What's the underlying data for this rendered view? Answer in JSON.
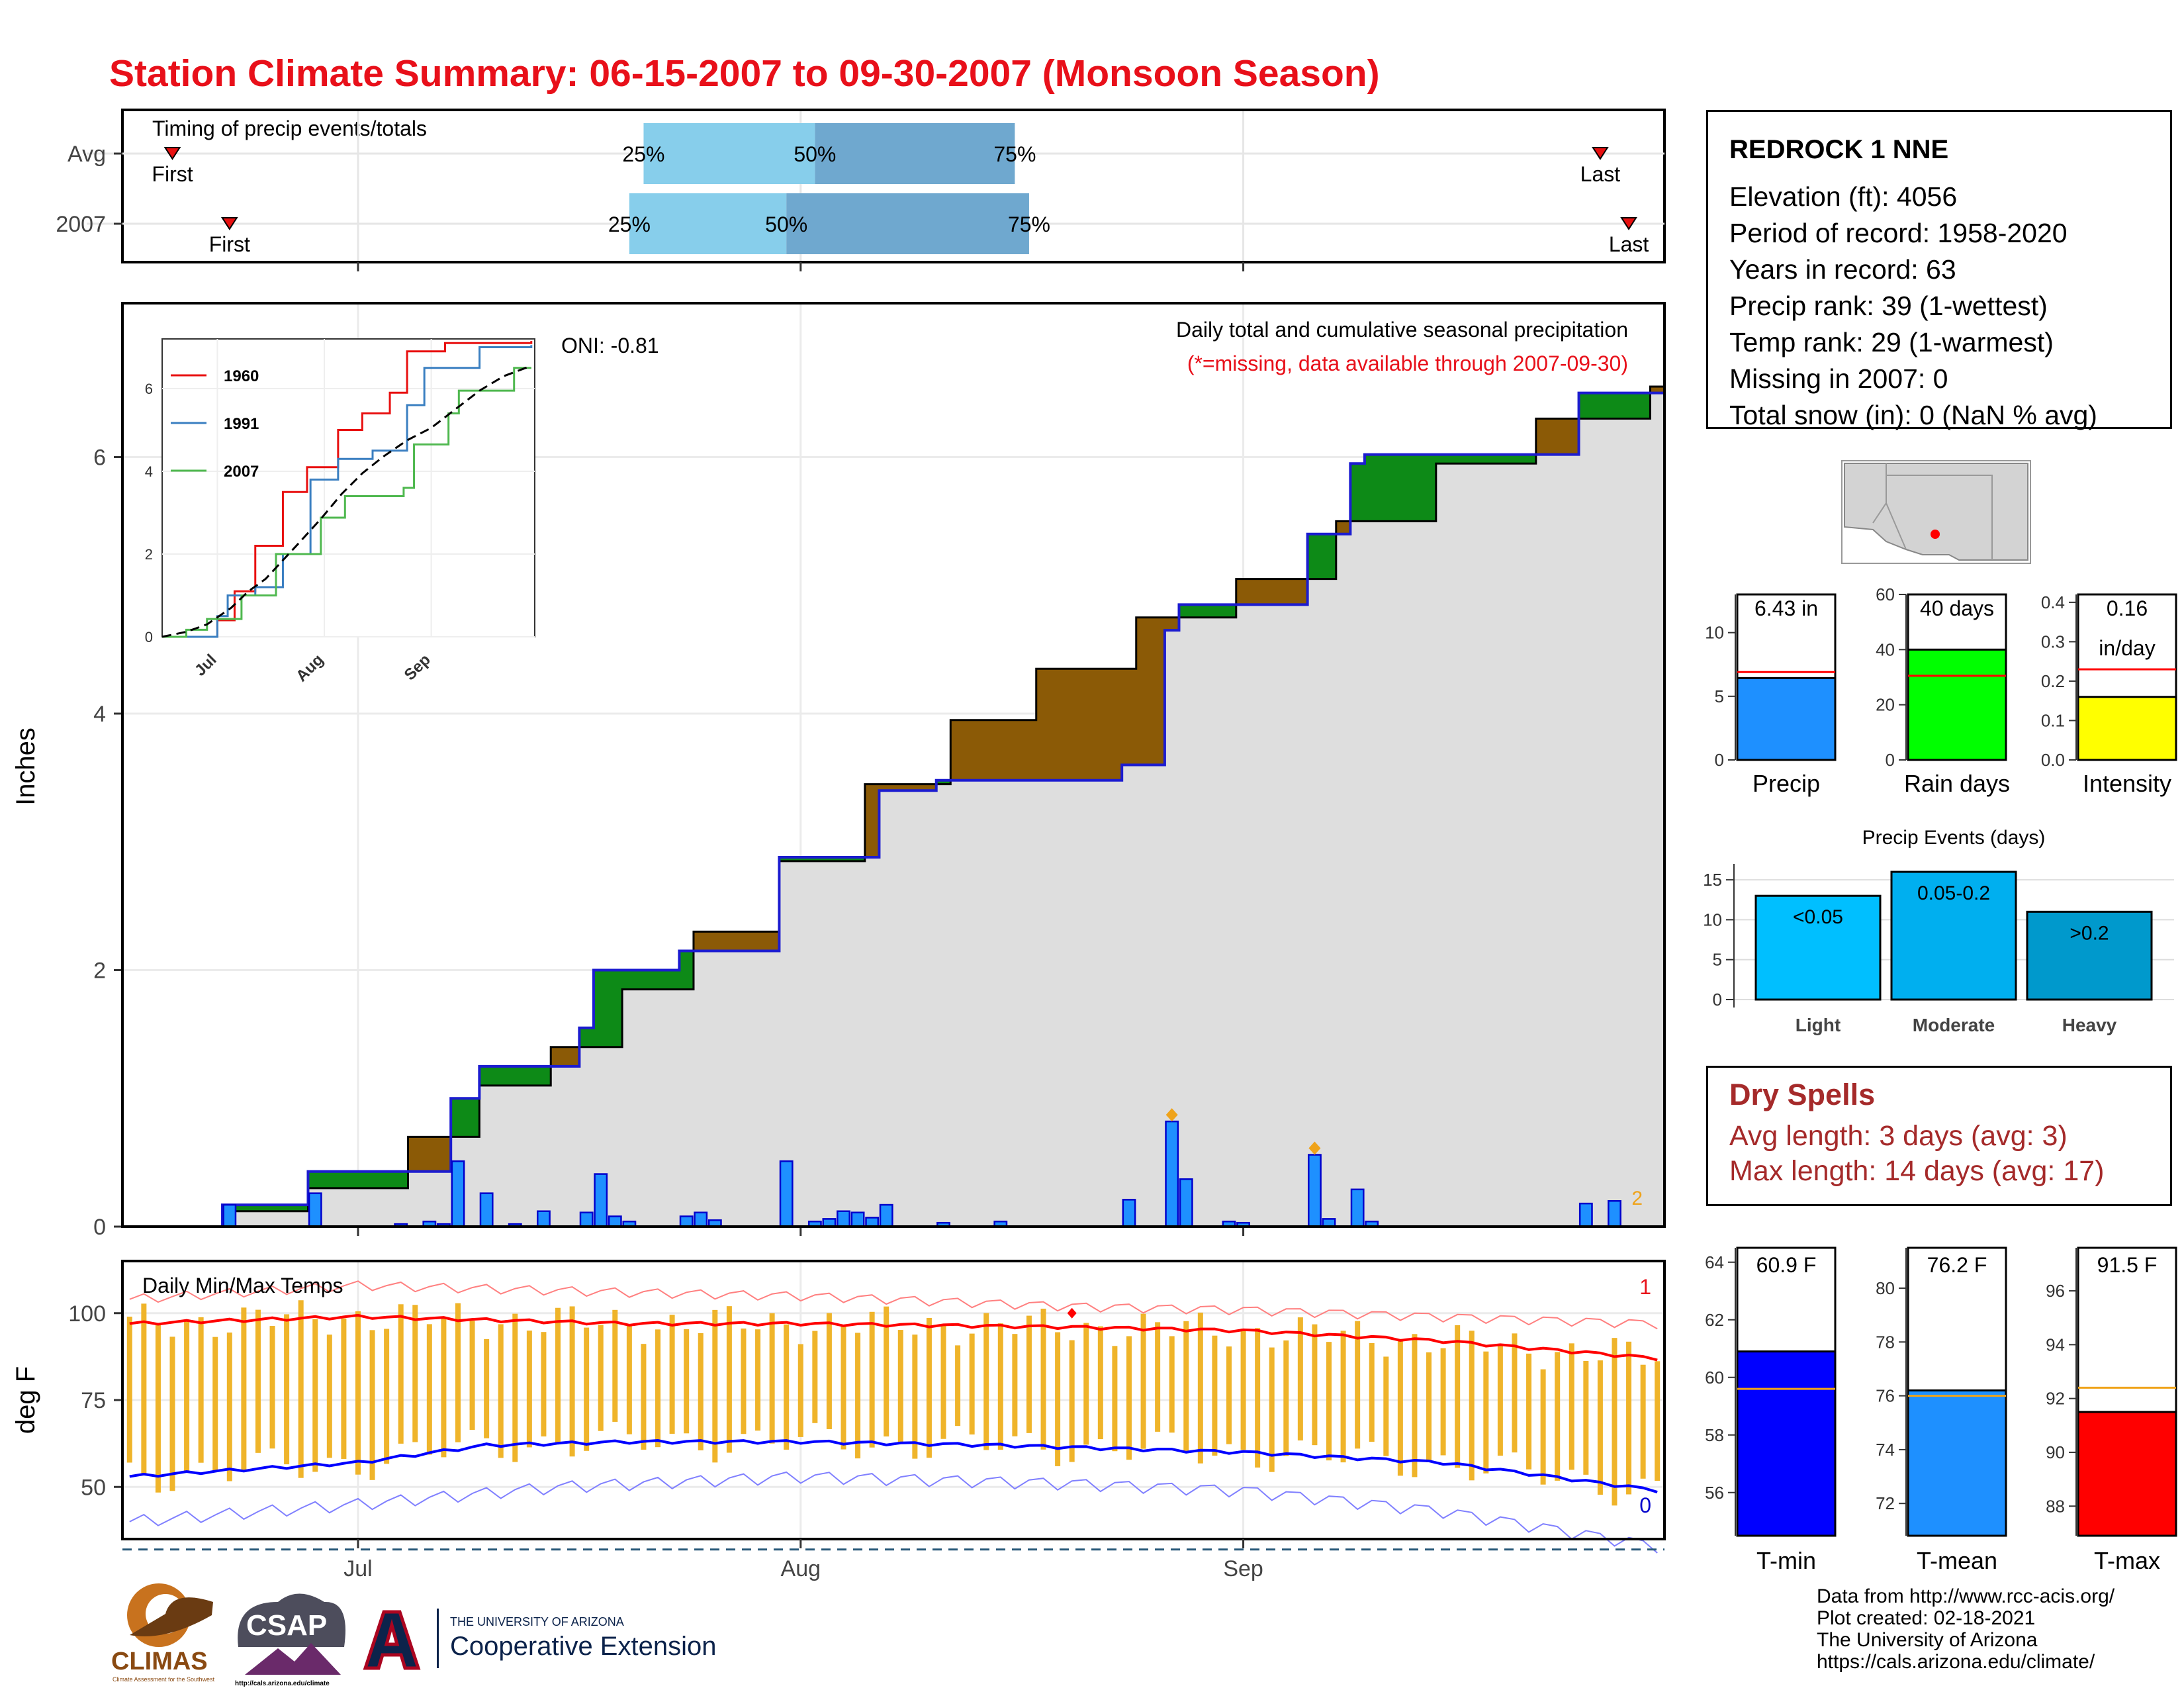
{
  "title": "Station Climate Summary: 06-15-2007 to 09-30-2007 (Monsoon Season)",
  "colors": {
    "title": "#e8101a",
    "cum_current": "#1c1cd0",
    "wet_fill": "#0d8a17",
    "dry_fill": "#8b5a06",
    "bar": "#1e90ff",
    "tmax": "#ff0000",
    "tmin": "#0000ff",
    "range": "#efb42a"
  },
  "timing": {
    "label": "Timing of precip events/totals",
    "rows": [
      {
        "label": "Avg",
        "first": "First",
        "last": "Last",
        "p25": "25%",
        "p50": "50%",
        "p75": "75%",
        "first_date": "2007-06-18",
        "last_date": "2007-09-26",
        "q25_date": "2007-07-21",
        "q50_date": "2007-08-02",
        "q75_date": "2007-08-16"
      },
      {
        "label": "2007",
        "first": "First",
        "last": "Last",
        "p25": "25%",
        "p50": "50%",
        "p75": "75%",
        "first_date": "2007-06-22",
        "last_date": "2007-09-28",
        "q25_date": "2007-07-20",
        "q50_date": "2007-07-31",
        "q75_date": "2007-08-17"
      }
    ]
  },
  "precip_panel": {
    "ylabel": "Inches",
    "subtitle": "Daily total and cumulative seasonal precipitation",
    "note": "(*=missing, data available through 2007-09-30)",
    "oni": "ONI: -0.81",
    "corner_label": "2",
    "yticks": [
      "0",
      "2",
      "4",
      "6"
    ]
  },
  "inset": {
    "series": [
      "1960",
      "1991",
      "2007"
    ],
    "xticks": [
      "Jul",
      "Aug",
      "Sep"
    ],
    "yticks": [
      "0",
      "2",
      "4",
      "6"
    ]
  },
  "temp_panel": {
    "ylabel": "deg F",
    "label": "Daily Min/Max Temps",
    "corner_top": "1",
    "corner_bottom": "0",
    "yticks": [
      "50",
      "75",
      "100"
    ],
    "xticks": [
      "Jul",
      "Aug",
      "Sep"
    ]
  },
  "station": {
    "name": "REDROCK 1 NNE",
    "lines": [
      "Elevation (ft): 4056",
      "Period of record: 1958-2020",
      "Years in record: 63",
      "Precip rank: 39 (1-wettest)",
      "Temp rank: 29 (1-warmest)",
      "Missing in 2007: 0",
      "Total snow (in): 0 (NaN % avg)"
    ]
  },
  "summary_bars": [
    {
      "label": "Precip",
      "value_text": "6.43 in",
      "value": 6.43,
      "avg": 6.9,
      "ymax": 13,
      "ticks": [
        "0",
        "5",
        "10"
      ],
      "tickvals": [
        0,
        5,
        10
      ],
      "color": "#1e90ff"
    },
    {
      "label": "Rain days",
      "value_text": "40 days",
      "value": 40,
      "avg": 30.5,
      "ymax": 60,
      "ticks": [
        "0",
        "20",
        "40",
        "60"
      ],
      "tickvals": [
        0,
        20,
        40,
        60
      ],
      "color": "#00ff00"
    },
    {
      "label": "Intensity",
      "value_text": "0.16",
      "value_text2": "in/day",
      "value": 0.16,
      "avg": 0.23,
      "ymax": 0.42,
      "ticks": [
        "0.0",
        "0.1",
        "0.2",
        "0.3",
        "0.4"
      ],
      "tickvals": [
        0,
        0.1,
        0.2,
        0.3,
        0.4
      ],
      "color": "#ffff00"
    }
  ],
  "events": {
    "title": "Precip Events (days)",
    "categories": [
      "Light",
      "Moderate",
      "Heavy"
    ],
    "bar_labels": [
      "<0.05",
      "0.05-0.2",
      ">0.2"
    ],
    "values": [
      13,
      16,
      11
    ],
    "yticks": [
      "0",
      "5",
      "10",
      "15"
    ],
    "colors": [
      "#00bfff",
      "#00afef",
      "#0099cc"
    ]
  },
  "dry_spells": {
    "title": "Dry Spells",
    "avg_length": "Avg length: 3 days (avg: 3)",
    "max_length": "Max length: 14 days (avg: 17)"
  },
  "temp_bars": [
    {
      "label": "T-min",
      "value_text": "60.9 F",
      "value": 60.9,
      "avg": 59.6,
      "ymin": 54.5,
      "ymax": 64.5,
      "ticks": [
        "56",
        "58",
        "60",
        "62",
        "64"
      ],
      "tickvals": [
        56,
        58,
        60,
        62,
        64
      ],
      "color": "#0000ff"
    },
    {
      "label": "T-mean",
      "value_text": "76.2 F",
      "value": 76.2,
      "avg": 76.0,
      "ymin": 70.8,
      "ymax": 81.5,
      "ticks": [
        "72",
        "74",
        "76",
        "78",
        "80"
      ],
      "tickvals": [
        72,
        74,
        76,
        78,
        80
      ],
      "color": "#1e90ff"
    },
    {
      "label": "T-max",
      "value_text": "91.5 F",
      "value": 91.5,
      "avg": 92.4,
      "ymin": 86.9,
      "ymax": 97.6,
      "ticks": [
        "88",
        "90",
        "92",
        "94",
        "96"
      ],
      "tickvals": [
        88,
        90,
        92,
        94,
        96
      ],
      "color": "#ff0000"
    }
  ],
  "credits": [
    "Data from http://www.rcc-acis.org/",
    "Plot created: 02-18-2021",
    "The University of Arizona",
    "https://cals.arizona.edu/climate/"
  ],
  "logos": {
    "climas": "CLIMAS",
    "climas_sub": "Climate Assessment for the Southwest",
    "csap": "CSAP",
    "csap_url": "http://cals.arizona.edu/climate",
    "ua_small": "THE UNIVERSITY OF ARIZONA",
    "ua_big": "Cooperative Extension"
  },
  "chart_data": {
    "type": "area",
    "title": "Station Climate Summary: 06-15-2007 to 09-30-2007 (Monsoon Season)",
    "ylabel": "Inches",
    "x_start": "2007-06-15",
    "x_end": "2007-09-30",
    "ylim": [
      0,
      7.2
    ],
    "daily_precip_2007": [
      {
        "date": "2007-06-22",
        "in": 0.17
      },
      {
        "date": "2007-06-28",
        "in": 0.26
      },
      {
        "date": "2007-07-04",
        "in": 0.02
      },
      {
        "date": "2007-07-06",
        "in": 0.04
      },
      {
        "date": "2007-07-07",
        "in": 0.02
      },
      {
        "date": "2007-07-08",
        "in": 0.51
      },
      {
        "date": "2007-07-10",
        "in": 0.26
      },
      {
        "date": "2007-07-12",
        "in": 0.02
      },
      {
        "date": "2007-07-14",
        "in": 0.12
      },
      {
        "date": "2007-07-17",
        "in": 0.11
      },
      {
        "date": "2007-07-18",
        "in": 0.41
      },
      {
        "date": "2007-07-19",
        "in": 0.08
      },
      {
        "date": "2007-07-20",
        "in": 0.04
      },
      {
        "date": "2007-07-24",
        "in": 0.08
      },
      {
        "date": "2007-07-25",
        "in": 0.11
      },
      {
        "date": "2007-07-26",
        "in": 0.05
      },
      {
        "date": "2007-07-31",
        "in": 0.51
      },
      {
        "date": "2007-08-02",
        "in": 0.04
      },
      {
        "date": "2007-08-03",
        "in": 0.06
      },
      {
        "date": "2007-08-04",
        "in": 0.12
      },
      {
        "date": "2007-08-05",
        "in": 0.11
      },
      {
        "date": "2007-08-06",
        "in": 0.07
      },
      {
        "date": "2007-08-07",
        "in": 0.17
      },
      {
        "date": "2007-08-11",
        "in": 0.03
      },
      {
        "date": "2007-08-15",
        "in": 0.04
      },
      {
        "date": "2007-08-24",
        "in": 0.21
      },
      {
        "date": "2007-08-27",
        "in": 0.82
      },
      {
        "date": "2007-08-28",
        "in": 0.37
      },
      {
        "date": "2007-08-31",
        "in": 0.04
      },
      {
        "date": "2007-09-01",
        "in": 0.03
      },
      {
        "date": "2007-09-06",
        "in": 0.56
      },
      {
        "date": "2007-09-07",
        "in": 0.06
      },
      {
        "date": "2007-09-09",
        "in": 0.29
      },
      {
        "date": "2007-09-10",
        "in": 0.04
      },
      {
        "date": "2007-09-25",
        "in": 0.18
      },
      {
        "date": "2007-09-27",
        "in": 0.2
      }
    ],
    "cumulative_2007_points": [
      [
        "2007-06-15",
        0
      ],
      [
        "2007-06-22",
        0.17
      ],
      [
        "2007-06-28",
        0.43
      ],
      [
        "2007-07-08",
        1.0
      ],
      [
        "2007-07-10",
        1.25
      ],
      [
        "2007-07-17",
        1.55
      ],
      [
        "2007-07-18",
        2.0
      ],
      [
        "2007-07-24",
        2.15
      ],
      [
        "2007-07-31",
        2.88
      ],
      [
        "2007-08-07",
        3.4
      ],
      [
        "2007-08-11",
        3.48
      ],
      [
        "2007-08-24",
        3.6
      ],
      [
        "2007-08-27",
        4.65
      ],
      [
        "2007-08-28",
        4.85
      ],
      [
        "2007-09-06",
        5.4
      ],
      [
        "2007-09-09",
        5.95
      ],
      [
        "2007-09-10",
        6.02
      ],
      [
        "2007-09-25",
        6.5
      ],
      [
        "2007-09-30",
        6.5
      ]
    ],
    "cumulative_avg_points": [
      [
        "2007-06-15",
        0
      ],
      [
        "2007-06-22",
        0.12
      ],
      [
        "2007-06-28",
        0.3
      ],
      [
        "2007-07-05",
        0.7
      ],
      [
        "2007-07-10",
        1.1
      ],
      [
        "2007-07-15",
        1.4
      ],
      [
        "2007-07-20",
        1.85
      ],
      [
        "2007-07-25",
        2.3
      ],
      [
        "2007-07-31",
        2.85
      ],
      [
        "2007-08-06",
        3.45
      ],
      [
        "2007-08-12",
        3.95
      ],
      [
        "2007-08-18",
        4.35
      ],
      [
        "2007-08-25",
        4.75
      ],
      [
        "2007-09-01",
        5.05
      ],
      [
        "2007-09-08",
        5.5
      ],
      [
        "2007-09-15",
        5.95
      ],
      [
        "2007-09-22",
        6.3
      ],
      [
        "2007-09-30",
        6.55
      ]
    ],
    "inset_series": [
      {
        "name": "1960",
        "points": [
          [
            "06-15",
            0
          ],
          [
            "07-01",
            0.4
          ],
          [
            "07-06",
            1.1
          ],
          [
            "07-12",
            2.2
          ],
          [
            "07-20",
            3.5
          ],
          [
            "07-27",
            4.1
          ],
          [
            "08-05",
            5.0
          ],
          [
            "08-12",
            5.4
          ],
          [
            "08-20",
            5.9
          ],
          [
            "08-25",
            6.9
          ],
          [
            "09-05",
            7.1
          ],
          [
            "09-30",
            7.15
          ]
        ]
      },
      {
        "name": "1991",
        "points": [
          [
            "06-15",
            0
          ],
          [
            "07-01",
            0.5
          ],
          [
            "07-04",
            1.0
          ],
          [
            "07-12",
            1.2
          ],
          [
            "07-20",
            2.0
          ],
          [
            "07-28",
            3.8
          ],
          [
            "08-05",
            4.3
          ],
          [
            "08-15",
            4.5
          ],
          [
            "08-25",
            5.6
          ],
          [
            "08-30",
            6.5
          ],
          [
            "09-15",
            7.0
          ],
          [
            "09-30",
            7.05
          ]
        ]
      },
      {
        "name": "2007",
        "points": [
          [
            "06-15",
            0
          ],
          [
            "06-22",
            0.17
          ],
          [
            "06-28",
            0.43
          ],
          [
            "07-08",
            1.0
          ],
          [
            "07-18",
            2.0
          ],
          [
            "07-31",
            2.88
          ],
          [
            "08-07",
            3.4
          ],
          [
            "08-24",
            3.6
          ],
          [
            "08-27",
            4.65
          ],
          [
            "09-06",
            5.4
          ],
          [
            "09-09",
            5.95
          ],
          [
            "09-25",
            6.5
          ],
          [
            "09-30",
            6.5
          ]
        ]
      }
    ],
    "temperature": {
      "ylim": [
        35,
        115
      ],
      "avg_tmax_points": [
        [
          "2007-06-15",
          97
        ],
        [
          "2007-07-01",
          99
        ],
        [
          "2007-07-20",
          97
        ],
        [
          "2007-08-01",
          97
        ],
        [
          "2007-08-20",
          96
        ],
        [
          "2007-09-01",
          95
        ],
        [
          "2007-09-15",
          92
        ],
        [
          "2007-09-30",
          87
        ]
      ],
      "avg_tmin_points": [
        [
          "2007-06-15",
          53
        ],
        [
          "2007-07-01",
          57
        ],
        [
          "2007-07-10",
          62
        ],
        [
          "2007-07-20",
          63
        ],
        [
          "2007-08-01",
          63
        ],
        [
          "2007-08-15",
          62
        ],
        [
          "2007-09-01",
          60
        ],
        [
          "2007-09-15",
          57
        ],
        [
          "2007-09-30",
          49
        ]
      ],
      "record_high_points": [
        [
          "2007-06-15",
          104
        ],
        [
          "2007-07-01",
          108
        ],
        [
          "2007-07-20",
          106
        ],
        [
          "2007-08-01",
          105
        ],
        [
          "2007-08-20",
          102
        ],
        [
          "2007-09-01",
          101
        ],
        [
          "2007-09-15",
          99
        ],
        [
          "2007-09-30",
          97
        ]
      ],
      "record_low_points": [
        [
          "2007-06-15",
          40
        ],
        [
          "2007-07-01",
          45
        ],
        [
          "2007-07-15",
          50
        ],
        [
          "2007-08-01",
          53
        ],
        [
          "2007-08-20",
          51
        ],
        [
          "2007-09-01",
          49
        ],
        [
          "2007-09-15",
          43
        ],
        [
          "2007-09-30",
          33
        ]
      ],
      "freezing_line": 32
    }
  }
}
